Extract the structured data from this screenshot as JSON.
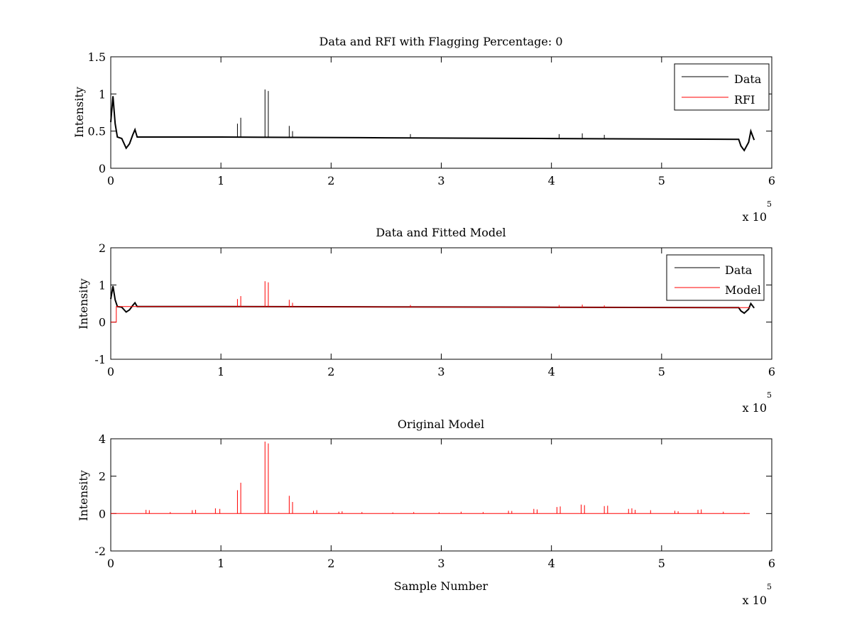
{
  "chart_data": [
    {
      "type": "line",
      "title": "Data and RFI with Flagging Percentage: 0",
      "xlabel": "",
      "ylabel": "Intensity",
      "xlim": [
        0,
        600000
      ],
      "ylim": [
        0,
        1.5
      ],
      "xticks": [
        0,
        1,
        2,
        3,
        4,
        5,
        6
      ],
      "yticks": [
        0,
        0.5,
        1,
        1.5
      ],
      "x_multiplier": {
        "base": "x 10",
        "exp": "5"
      },
      "legend_position": "top-right",
      "series": [
        {
          "name": "Data",
          "color": "#000000",
          "baseline": [
            [
              0,
              0.62
            ],
            [
              2000,
              0.97
            ],
            [
              4000,
              0.6
            ],
            [
              6000,
              0.42
            ],
            [
              10000,
              0.4
            ],
            [
              14000,
              0.27
            ],
            [
              17000,
              0.33
            ],
            [
              20000,
              0.45
            ],
            [
              22000,
              0.52
            ],
            [
              24000,
              0.42
            ],
            [
              100000,
              0.42
            ],
            [
              250000,
              0.41
            ],
            [
              400000,
              0.4
            ],
            [
              570000,
              0.39
            ],
            [
              572000,
              0.3
            ],
            [
              575000,
              0.24
            ],
            [
              579000,
              0.35
            ],
            [
              581000,
              0.5
            ],
            [
              584000,
              0.38
            ]
          ],
          "spikes": [
            [
              115000,
              0.6
            ],
            [
              118000,
              0.68
            ],
            [
              140000,
              1.06
            ],
            [
              143000,
              1.04
            ],
            [
              162000,
              0.57
            ],
            [
              165000,
              0.5
            ],
            [
              272000,
              0.46
            ],
            [
              407000,
              0.46
            ],
            [
              428000,
              0.47
            ],
            [
              448000,
              0.45
            ]
          ]
        },
        {
          "name": "RFI",
          "color": "#ff0000",
          "baseline": [],
          "spikes": []
        }
      ]
    },
    {
      "type": "line",
      "title": "Data and Fitted Model",
      "xlabel": "",
      "ylabel": "Intensity",
      "xlim": [
        0,
        600000
      ],
      "ylim": [
        -1,
        2
      ],
      "xticks": [
        0,
        1,
        2,
        3,
        4,
        5,
        6
      ],
      "yticks": [
        -1,
        0,
        1,
        2
      ],
      "x_multiplier": {
        "base": "x 10",
        "exp": "5"
      },
      "legend_position": "top-right",
      "series": [
        {
          "name": "Data",
          "color": "#000000",
          "baseline": [
            [
              0,
              0.62
            ],
            [
              2000,
              0.97
            ],
            [
              4000,
              0.6
            ],
            [
              6000,
              0.42
            ],
            [
              10000,
              0.4
            ],
            [
              14000,
              0.27
            ],
            [
              17000,
              0.33
            ],
            [
              20000,
              0.45
            ],
            [
              22000,
              0.52
            ],
            [
              24000,
              0.42
            ],
            [
              100000,
              0.42
            ],
            [
              250000,
              0.41
            ],
            [
              400000,
              0.4
            ],
            [
              570000,
              0.39
            ],
            [
              572000,
              0.3
            ],
            [
              575000,
              0.24
            ],
            [
              579000,
              0.35
            ],
            [
              581000,
              0.5
            ],
            [
              584000,
              0.38
            ]
          ],
          "spikes": []
        },
        {
          "name": "Model",
          "color": "#ff0000",
          "baseline": [
            [
              0,
              0.0
            ],
            [
              5000,
              0.0
            ],
            [
              5000,
              0.42
            ],
            [
              100000,
              0.42
            ],
            [
              250000,
              0.41
            ],
            [
              400000,
              0.4
            ],
            [
              580000,
              0.39
            ]
          ],
          "spikes": [
            [
              115000,
              0.62
            ],
            [
              118000,
              0.7
            ],
            [
              140000,
              1.1
            ],
            [
              143000,
              1.07
            ],
            [
              162000,
              0.6
            ],
            [
              165000,
              0.52
            ],
            [
              272000,
              0.46
            ],
            [
              407000,
              0.46
            ],
            [
              428000,
              0.47
            ],
            [
              448000,
              0.45
            ]
          ]
        }
      ]
    },
    {
      "type": "line",
      "title": "Original Model",
      "xlabel": "Sample Number",
      "ylabel": "Intensity",
      "xlim": [
        0,
        600000
      ],
      "ylim": [
        -2,
        4
      ],
      "xticks": [
        0,
        1,
        2,
        3,
        4,
        5,
        6
      ],
      "yticks": [
        -2,
        0,
        2,
        4
      ],
      "x_multiplier": {
        "base": "x 10",
        "exp": "5"
      },
      "legend_position": "none",
      "series": [
        {
          "name": "",
          "color": "#ff0000",
          "baseline": [
            [
              0,
              0.0
            ],
            [
              580000,
              0.0
            ]
          ],
          "spikes": [
            [
              32000,
              0.2
            ],
            [
              35000,
              0.18
            ],
            [
              54000,
              0.08
            ],
            [
              74000,
              0.18
            ],
            [
              77000,
              0.2
            ],
            [
              95000,
              0.28
            ],
            [
              99000,
              0.25
            ],
            [
              115000,
              1.25
            ],
            [
              118000,
              1.65
            ],
            [
              140000,
              3.85
            ],
            [
              143000,
              3.75
            ],
            [
              162000,
              0.95
            ],
            [
              165000,
              0.62
            ],
            [
              184000,
              0.15
            ],
            [
              187000,
              0.18
            ],
            [
              207000,
              0.1
            ],
            [
              210000,
              0.12
            ],
            [
              228000,
              0.08
            ],
            [
              256000,
              0.06
            ],
            [
              275000,
              0.08
            ],
            [
              298000,
              0.07
            ],
            [
              318000,
              0.1
            ],
            [
              338000,
              0.08
            ],
            [
              361000,
              0.15
            ],
            [
              364000,
              0.14
            ],
            [
              384000,
              0.25
            ],
            [
              387000,
              0.22
            ],
            [
              405000,
              0.35
            ],
            [
              408000,
              0.38
            ],
            [
              427000,
              0.48
            ],
            [
              430000,
              0.45
            ],
            [
              448000,
              0.4
            ],
            [
              451000,
              0.42
            ],
            [
              470000,
              0.25
            ],
            [
              473000,
              0.28
            ],
            [
              476000,
              0.2
            ],
            [
              490000,
              0.18
            ],
            [
              512000,
              0.15
            ],
            [
              515000,
              0.12
            ],
            [
              533000,
              0.2
            ],
            [
              536000,
              0.22
            ],
            [
              556000,
              0.1
            ],
            [
              575000,
              0.05
            ]
          ]
        }
      ]
    }
  ]
}
